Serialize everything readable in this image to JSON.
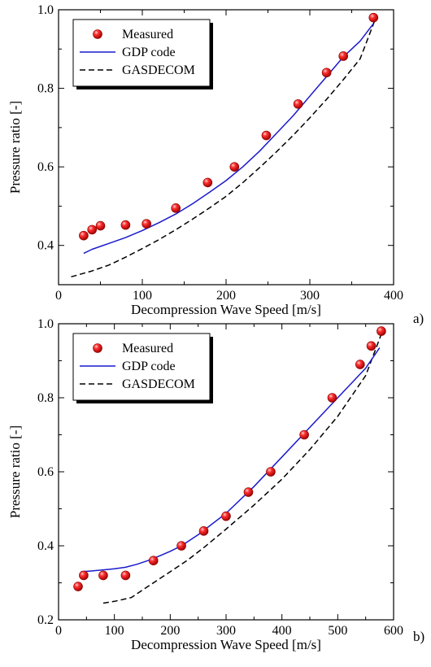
{
  "chart_data": [
    {
      "type": "scatter",
      "panel_label": "a)",
      "xlabel": "Decompression Wave Speed [m/s]",
      "ylabel": "Pressure ratio [-]",
      "xlim": [
        0,
        400
      ],
      "ylim": [
        0.3,
        1.0
      ],
      "x_ticks": [
        0,
        100,
        200,
        300,
        400
      ],
      "y_ticks": [
        0.4,
        0.6,
        0.8,
        1.0
      ],
      "x_tick_labels": [
        "0",
        "100",
        "200",
        "300",
        "400"
      ],
      "y_tick_labels": [
        "0.4",
        "0.6",
        "0.8",
        "1.0"
      ],
      "grid": false,
      "legend_position": "top-left",
      "series": [
        {
          "name": "Measured",
          "style": "marker",
          "color": "#e01010",
          "x": [
            30,
            40,
            50,
            80,
            105,
            140,
            178,
            210,
            248,
            286,
            320,
            340,
            376
          ],
          "y": [
            0.425,
            0.44,
            0.45,
            0.452,
            0.455,
            0.495,
            0.56,
            0.6,
            0.68,
            0.76,
            0.84,
            0.882,
            0.98
          ]
        },
        {
          "name": "GDP code",
          "style": "solid",
          "color": "#1a1acc",
          "x": [
            30,
            40,
            60,
            80,
            100,
            120,
            140,
            160,
            180,
            200,
            220,
            240,
            260,
            280,
            300,
            320,
            340,
            360,
            376
          ],
          "y": [
            0.38,
            0.39,
            0.405,
            0.42,
            0.438,
            0.458,
            0.48,
            0.506,
            0.535,
            0.565,
            0.6,
            0.64,
            0.685,
            0.73,
            0.78,
            0.83,
            0.88,
            0.92,
            0.965
          ]
        },
        {
          "name": "GASDECOM",
          "style": "dashed",
          "color": "#000000",
          "x": [
            15,
            40,
            60,
            80,
            100,
            120,
            140,
            160,
            180,
            200,
            220,
            240,
            260,
            280,
            300,
            320,
            340,
            360,
            378
          ],
          "y": [
            0.32,
            0.335,
            0.35,
            0.37,
            0.392,
            0.415,
            0.44,
            0.467,
            0.495,
            0.525,
            0.56,
            0.598,
            0.638,
            0.68,
            0.725,
            0.772,
            0.822,
            0.875,
            0.975
          ]
        }
      ]
    },
    {
      "type": "scatter",
      "panel_label": "b)",
      "xlabel": "Decompression Wave Speed [m/s]",
      "ylabel": "Pressure ratio [-]",
      "xlim": [
        0,
        600
      ],
      "ylim": [
        0.2,
        1.0
      ],
      "x_ticks": [
        0,
        100,
        200,
        300,
        400,
        500,
        600
      ],
      "y_ticks": [
        0.2,
        0.4,
        0.6,
        0.8,
        1.0
      ],
      "x_tick_labels": [
        "0",
        "100",
        "200",
        "300",
        "400",
        "500",
        "600"
      ],
      "y_tick_labels": [
        "0.2",
        "0.4",
        "0.6",
        "0.8",
        "1.0"
      ],
      "grid": false,
      "legend_position": "top-left",
      "series": [
        {
          "name": "Measured",
          "style": "marker",
          "color": "#e01010",
          "x": [
            35,
            45,
            80,
            120,
            170,
            220,
            260,
            300,
            340,
            380,
            440,
            490,
            540,
            560,
            578
          ],
          "y": [
            0.29,
            0.32,
            0.32,
            0.32,
            0.36,
            0.4,
            0.44,
            0.48,
            0.545,
            0.6,
            0.7,
            0.8,
            0.89,
            0.94,
            0.98
          ]
        },
        {
          "name": "GDP code",
          "style": "solid",
          "color": "#1a1acc",
          "x": [
            40,
            60,
            80,
            100,
            120,
            140,
            160,
            180,
            200,
            220,
            250,
            300,
            350,
            400,
            450,
            500,
            550,
            575
          ],
          "y": [
            0.33,
            0.332,
            0.335,
            0.338,
            0.342,
            0.35,
            0.36,
            0.372,
            0.385,
            0.4,
            0.43,
            0.488,
            0.56,
            0.64,
            0.72,
            0.8,
            0.88,
            0.935
          ]
        },
        {
          "name": "GASDECOM",
          "style": "dashed",
          "color": "#000000",
          "x": [
            80,
            100,
            130,
            150,
            170,
            200,
            230,
            260,
            300,
            350,
            400,
            450,
            500,
            550,
            580
          ],
          "y": [
            0.245,
            0.25,
            0.26,
            0.28,
            0.3,
            0.33,
            0.36,
            0.395,
            0.445,
            0.51,
            0.58,
            0.66,
            0.75,
            0.86,
            0.98
          ]
        }
      ]
    }
  ]
}
